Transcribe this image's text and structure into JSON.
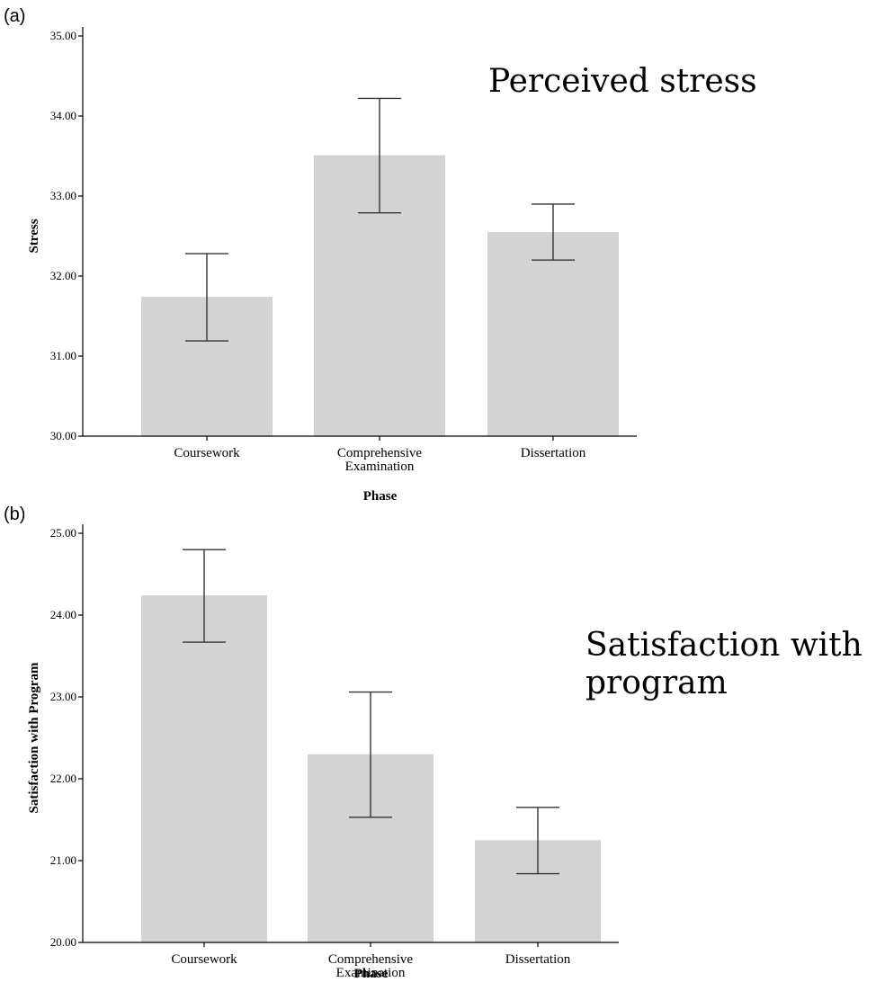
{
  "chart_data": [
    {
      "panel": "(a)",
      "type": "bar",
      "title_lines": [
        "Perceived stress"
      ],
      "xlabel": "Phase",
      "ylabel": "Stress",
      "ylim": [
        30,
        35
      ],
      "yticks": [
        "30.00",
        "31.00",
        "32.00",
        "33.00",
        "34.00",
        "35.00"
      ],
      "categories": [
        [
          "Coursework"
        ],
        [
          "Comprehensive",
          "Examination"
        ],
        [
          "Dissertation"
        ]
      ],
      "values": [
        31.74,
        33.51,
        32.55
      ],
      "error_low": [
        31.19,
        32.79,
        32.2
      ],
      "error_high": [
        32.28,
        34.22,
        32.9
      ],
      "bar_color": "#d3d3d3",
      "grid": false,
      "legend": "none"
    },
    {
      "panel": "(b)",
      "type": "bar",
      "title_lines": [
        "Satisfaction with",
        "program"
      ],
      "xlabel": "Phase",
      "ylabel": "Satisfaction with Program",
      "ylim": [
        20,
        25
      ],
      "yticks": [
        "20.00",
        "21.00",
        "22.00",
        "23.00",
        "24.00",
        "25.00"
      ],
      "categories": [
        [
          "Coursework"
        ],
        [
          "Comprehensive",
          "Examination"
        ],
        [
          "Dissertation"
        ]
      ],
      "values": [
        24.24,
        22.3,
        21.25
      ],
      "error_low": [
        23.67,
        21.53,
        20.84
      ],
      "error_high": [
        24.8,
        23.06,
        21.65
      ],
      "bar_color": "#d3d3d3",
      "grid": false,
      "legend": "none"
    }
  ]
}
